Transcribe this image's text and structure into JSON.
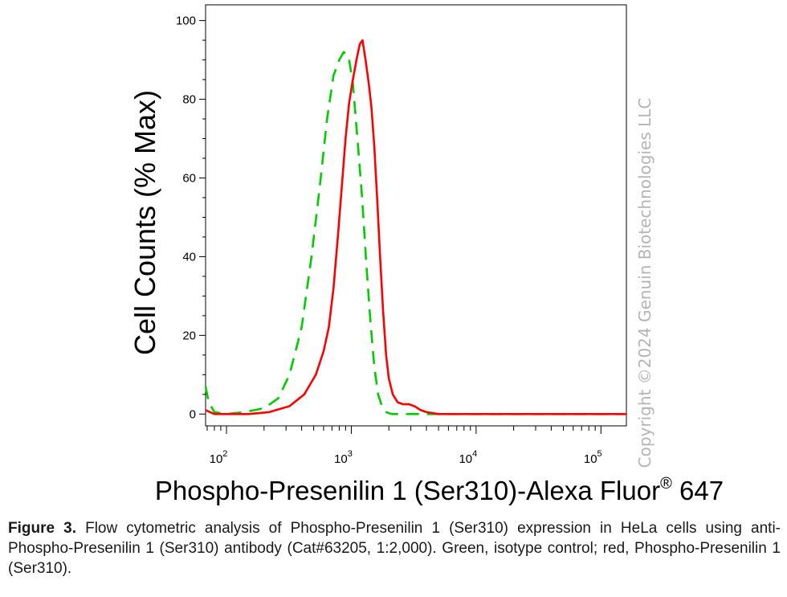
{
  "chart_data": {
    "type": "line",
    "ylabel": "Cell Counts (% Max)",
    "xlabel": "Phospho-Presenilin 1 (Ser310)-Alexa Fluor",
    "xlabel_sup": "®",
    "xlabel_suffix": " 647",
    "x_scale": "log",
    "xlim": [
      68,
      160000
    ],
    "ylim": [
      -3,
      104
    ],
    "y_ticks": [
      "0",
      "20",
      "40",
      "60",
      "80",
      "100"
    ],
    "y_tick_values": [
      0,
      20,
      40,
      60,
      80,
      100
    ],
    "x_ticks": [
      {
        "base": "10",
        "exp": "2",
        "value": 100
      },
      {
        "base": "10",
        "exp": "3",
        "value": 1000
      },
      {
        "base": "10",
        "exp": "4",
        "value": 10000
      },
      {
        "base": "10",
        "exp": "5",
        "value": 100000
      }
    ],
    "grid": false,
    "series": [
      {
        "color": "#00cc00",
        "dash": true,
        "points": [
          [
            68,
            7
          ],
          [
            72,
            3
          ],
          [
            80,
            0.5
          ],
          [
            100,
            0
          ],
          [
            140,
            0.5
          ],
          [
            200,
            1.5
          ],
          [
            260,
            4
          ],
          [
            320,
            10
          ],
          [
            400,
            22
          ],
          [
            480,
            40
          ],
          [
            560,
            58
          ],
          [
            640,
            75
          ],
          [
            720,
            86
          ],
          [
            800,
            90
          ],
          [
            870,
            92
          ],
          [
            950,
            91
          ],
          [
            1030,
            84
          ],
          [
            1120,
            70
          ],
          [
            1220,
            55
          ],
          [
            1320,
            38
          ],
          [
            1420,
            24
          ],
          [
            1530,
            12
          ],
          [
            1640,
            5
          ],
          [
            1760,
            2
          ],
          [
            1900,
            0.5
          ],
          [
            2100,
            0
          ],
          [
            3000,
            0
          ],
          [
            160000,
            0
          ]
        ]
      },
      {
        "color": "#ff0000",
        "dash": false,
        "points": [
          [
            68,
            1
          ],
          [
            80,
            0
          ],
          [
            150,
            0
          ],
          [
            220,
            0.5
          ],
          [
            320,
            2
          ],
          [
            420,
            5
          ],
          [
            520,
            10
          ],
          [
            600,
            16
          ],
          [
            660,
            22
          ],
          [
            720,
            32
          ],
          [
            780,
            45
          ],
          [
            840,
            58
          ],
          [
            900,
            70
          ],
          [
            960,
            79
          ],
          [
            1030,
            85
          ],
          [
            1100,
            90
          ],
          [
            1170,
            94
          ],
          [
            1230,
            95
          ],
          [
            1300,
            90
          ],
          [
            1380,
            84
          ],
          [
            1450,
            78
          ],
          [
            1530,
            68
          ],
          [
            1610,
            55
          ],
          [
            1700,
            40
          ],
          [
            1800,
            26
          ],
          [
            1900,
            15
          ],
          [
            2000,
            9
          ],
          [
            2150,
            5
          ],
          [
            2350,
            3
          ],
          [
            2600,
            2.5
          ],
          [
            2900,
            2.5
          ],
          [
            3200,
            2
          ],
          [
            3600,
            1
          ],
          [
            4000,
            0.5
          ],
          [
            5000,
            0
          ],
          [
            160000,
            0
          ]
        ]
      }
    ]
  },
  "watermark": "Copyright ©2024 Genuin Biotechnologies LLC",
  "caption": {
    "lead": "Figure 3.",
    "text": " Flow cytometric analysis of Phospho-Presenilin 1 (Ser310) expression in HeLa cells using anti-Phospho-Presenilin 1 (Ser310) antibody (Cat#63205, 1:2,000). Green, isotype control; red, Phospho-Presenilin 1 (Ser310)."
  }
}
